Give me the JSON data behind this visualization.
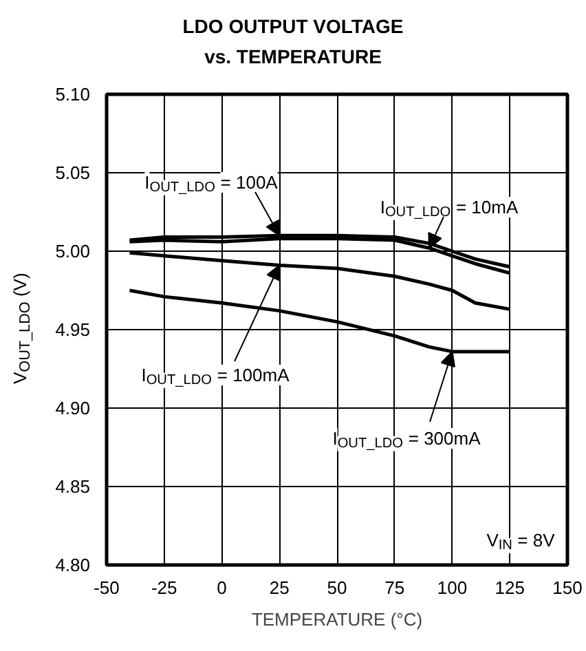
{
  "chart_data": {
    "type": "line",
    "title": "LDO OUTPUT VOLTAGE\nvs. TEMPERATURE",
    "xlabel": "TEMPERATURE (°C)",
    "ylabel": "V$_{OUT_LDO}$ (V)",
    "xlim": [
      -50,
      150
    ],
    "xticks": [
      -50,
      -25,
      0,
      25,
      50,
      75,
      100,
      125,
      150
    ],
    "ylim": [
      4.8,
      5.1
    ],
    "yticks": [
      {
        "value": 4.8,
        "label": "4.80"
      },
      {
        "value": 4.85,
        "label": "4.85"
      },
      {
        "value": 4.9,
        "label": "4.90"
      },
      {
        "value": 4.95,
        "label": "4.95"
      },
      {
        "value": 5.0,
        "label": "5.00"
      },
      {
        "value": 5.05,
        "label": "5.05"
      },
      {
        "value": 5.1,
        "label": "5.10"
      }
    ],
    "grid": true,
    "legend": false,
    "marker": "none",
    "line_style": "solid",
    "x": [
      -40,
      -25,
      0,
      25,
      50,
      75,
      90,
      100,
      110,
      125
    ],
    "series": [
      {
        "name": "I$_{OUT_LDO}$ = 100A",
        "color": "#000000",
        "values": [
          5.007,
          5.009,
          5.009,
          5.01,
          5.01,
          5.009,
          5.005,
          5.0,
          4.995,
          4.99
        ]
      },
      {
        "name": "I$_{OUT_LDO}$ = 10mA",
        "color": "#000000",
        "values": [
          5.006,
          5.007,
          5.006,
          5.008,
          5.008,
          5.007,
          5.002,
          4.997,
          4.992,
          4.986
        ]
      },
      {
        "name": "I$_{OUT_LDO}$ = 100mA",
        "color": "#000000",
        "values": [
          4.999,
          4.997,
          4.994,
          4.991,
          4.989,
          4.984,
          4.979,
          4.975,
          4.967,
          4.963
        ]
      },
      {
        "name": "I$_{OUT_LDO}$ = 300mA",
        "color": "#000000",
        "values": [
          4.975,
          4.971,
          4.967,
          4.962,
          4.955,
          4.946,
          4.939,
          4.936,
          4.936,
          4.936
        ]
      }
    ],
    "annotations": [
      "V$_{IN}$ = 8V"
    ]
  }
}
